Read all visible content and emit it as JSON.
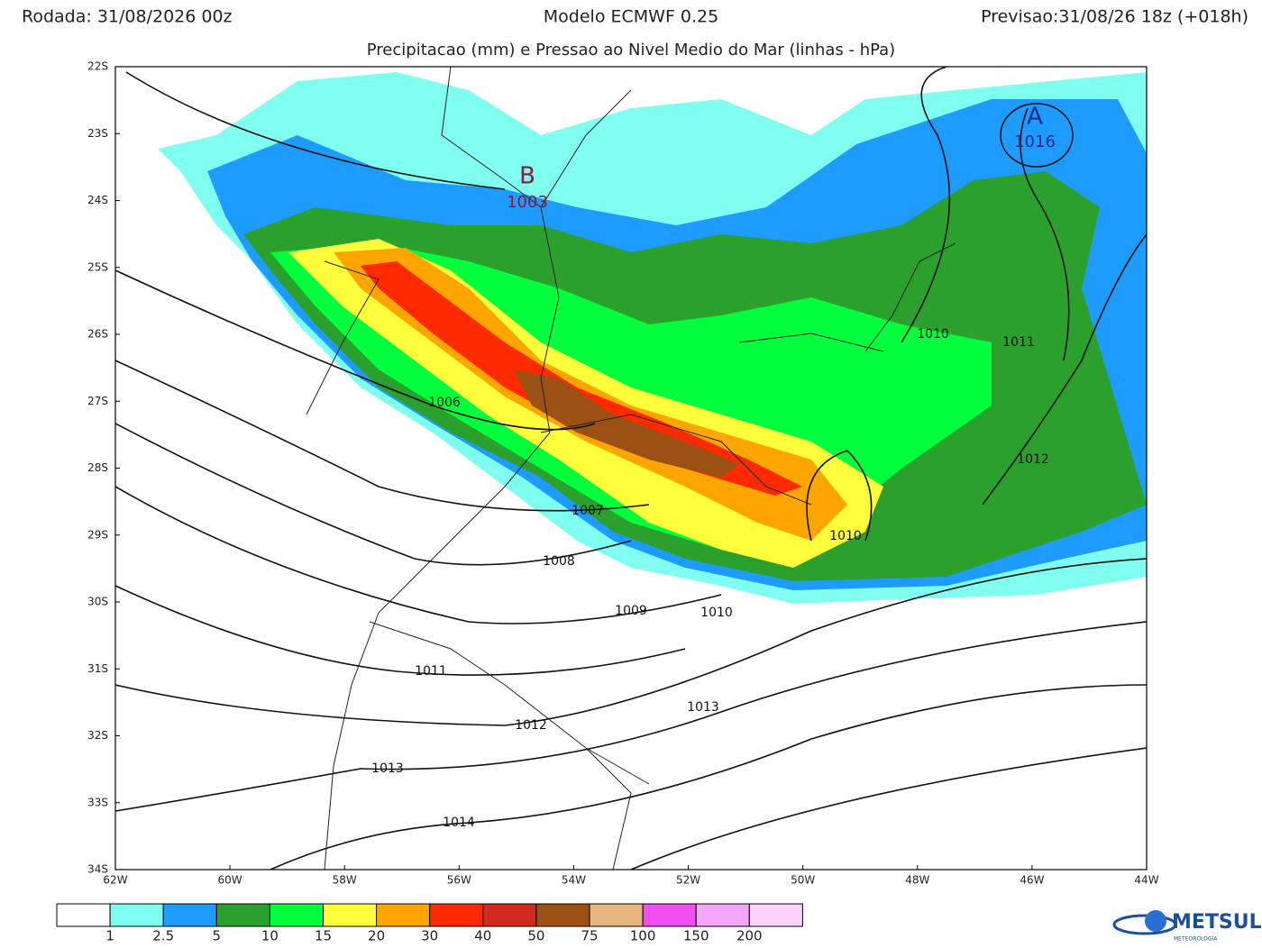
{
  "header": {
    "run": "Rodada: 31/08/2026 00z",
    "model": "Modelo ECMWF 0.25",
    "forecast": "Previsao:31/08/26 18z (+018h)",
    "subtitle": "Precipitacao (mm) e Pressao ao Nivel Medio do Mar (linhas - hPa)"
  },
  "map": {
    "lonlim": [
      -62,
      -44
    ],
    "latlim": [
      -34,
      -22
    ],
    "lon_ticks": [
      {
        "value": -62,
        "label": "62W"
      },
      {
        "value": -60,
        "label": "60W"
      },
      {
        "value": -58,
        "label": "58W"
      },
      {
        "value": -56,
        "label": "56W"
      },
      {
        "value": -54,
        "label": "54W"
      },
      {
        "value": -52,
        "label": "52W"
      },
      {
        "value": -50,
        "label": "50W"
      },
      {
        "value": -48,
        "label": "48W"
      },
      {
        "value": -46,
        "label": "46W"
      },
      {
        "value": -44,
        "label": "44W"
      }
    ],
    "lat_ticks": [
      {
        "value": -22,
        "label": "22S"
      },
      {
        "value": -23,
        "label": "23S"
      },
      {
        "value": -24,
        "label": "24S"
      },
      {
        "value": -25,
        "label": "25S"
      },
      {
        "value": -26,
        "label": "26S"
      },
      {
        "value": -27,
        "label": "27S"
      },
      {
        "value": -28,
        "label": "28S"
      },
      {
        "value": -29,
        "label": "29S"
      },
      {
        "value": -30,
        "label": "30S"
      },
      {
        "value": -31,
        "label": "31S"
      },
      {
        "value": -32,
        "label": "32S"
      },
      {
        "value": -33,
        "label": "33S"
      },
      {
        "value": -34,
        "label": "34S"
      }
    ],
    "low_center": {
      "symbol": "B",
      "pressure": 1003
    },
    "high_center": {
      "symbol": "A",
      "pressure": 1016
    },
    "isobar_labels": [
      1006,
      1007,
      1008,
      1009,
      1010,
      1011,
      1012,
      1013,
      1014,
      1013,
      1010,
      1010,
      1011,
      1012
    ]
  },
  "colorbar": {
    "colors": [
      "#ffffff",
      "#80fff0",
      "#1e9bff",
      "#2ca02c",
      "#00ff3c",
      "#ffff3c",
      "#ffa500",
      "#ff2a00",
      "#d22a1e",
      "#9b5014",
      "#e6b47f",
      "#f050f0",
      "#f5a5f5",
      "#fad2fa"
    ],
    "labels": [
      1,
      2.5,
      5,
      10,
      15,
      20,
      30,
      40,
      50,
      75,
      100,
      150,
      200
    ]
  },
  "logo": {
    "name": "METSUL",
    "tagline": "METEOROLOGIA"
  }
}
